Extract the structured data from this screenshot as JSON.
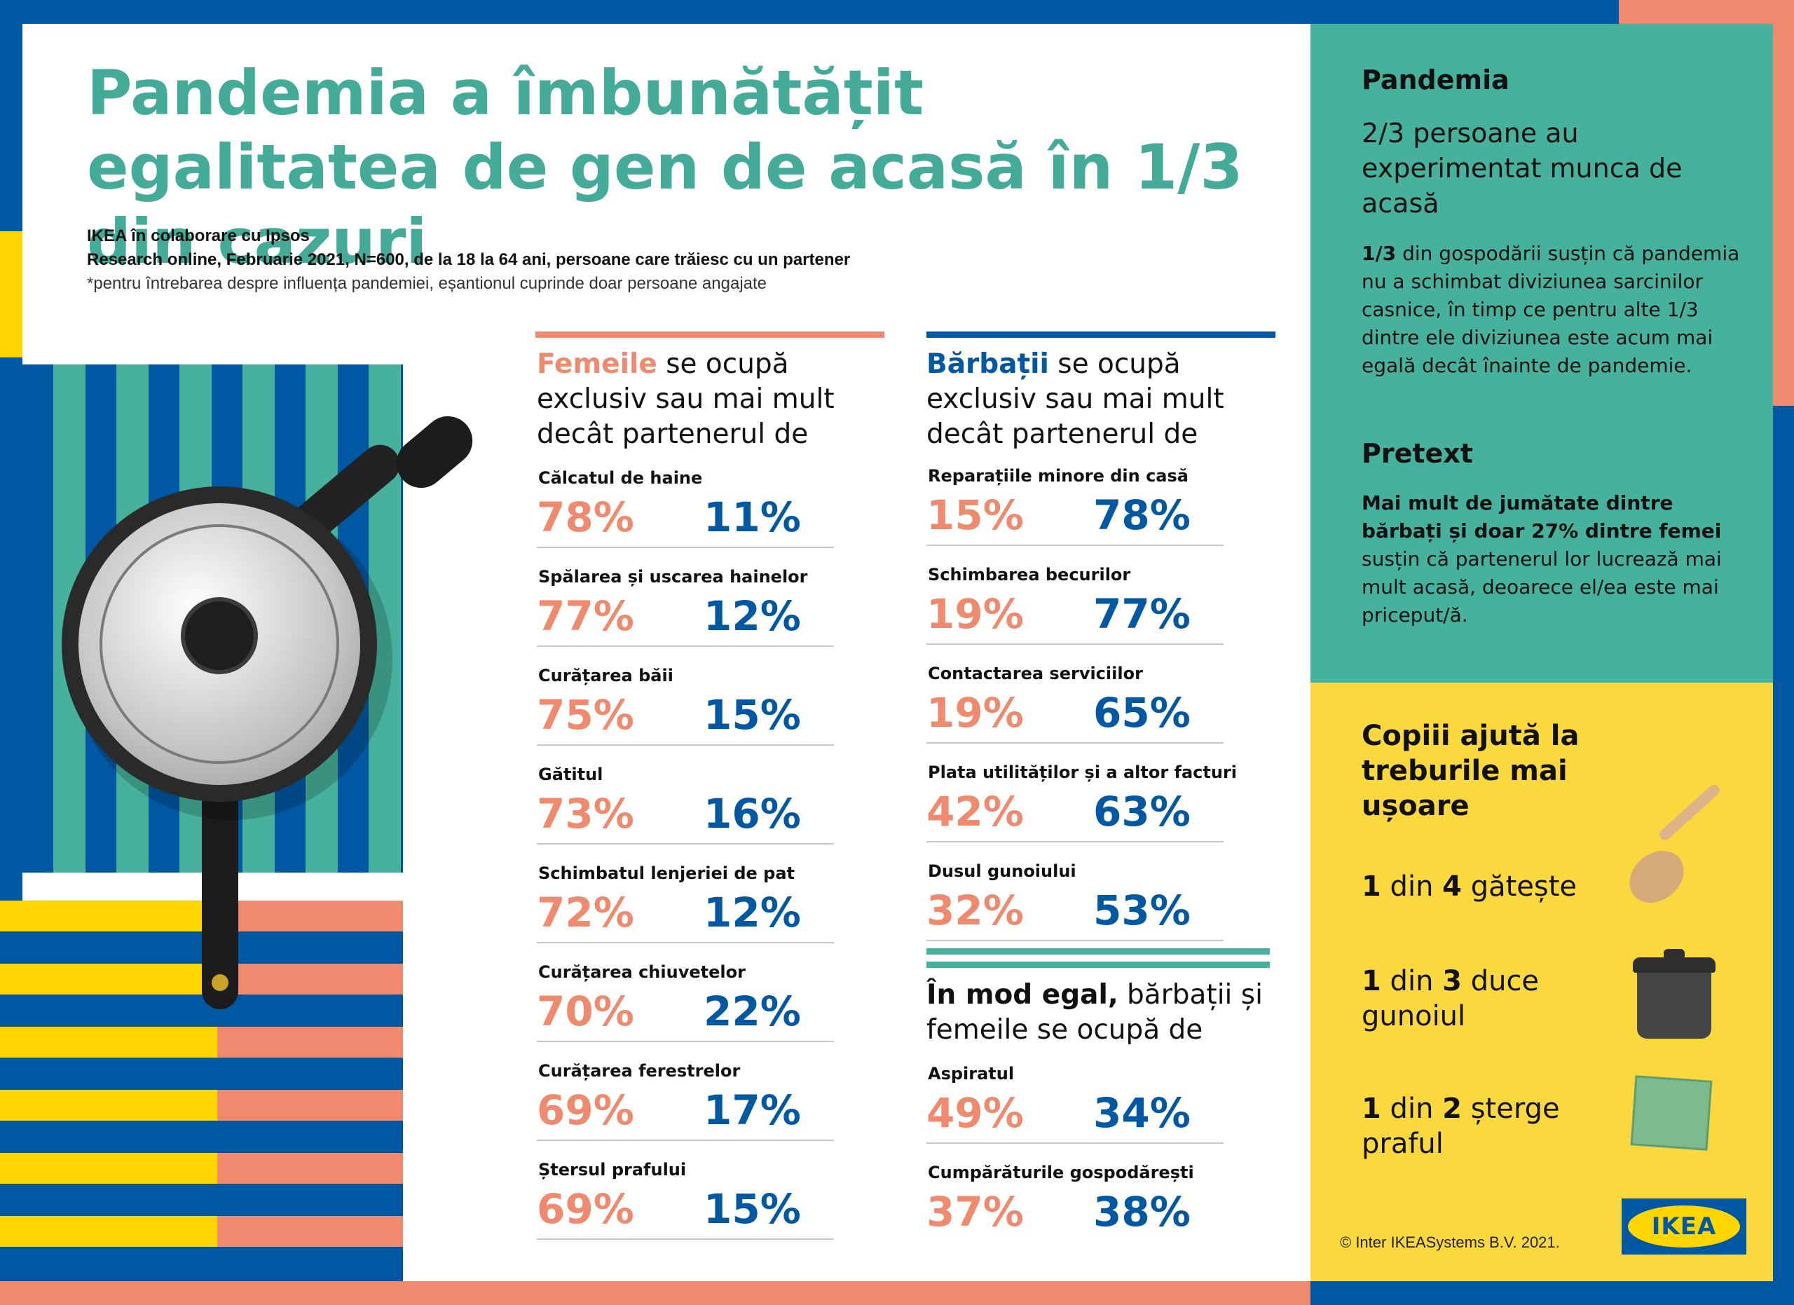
{
  "title": "Pandemia a îmbunătățit egalitatea de gen de acasă în 1/3 din cazuri",
  "subtitle": {
    "line1": "IKEA în colaborare cu Ipsos",
    "line2": "Research online, Februarie 2021, N=600, de la 18 la 64 ani, persoane care trăiesc cu un partener",
    "line3": "*pentru întrebarea despre influența pandemiei, eșantionul cuprinde doar persoane angajate"
  },
  "women_column": {
    "heading_strong": "Femeile",
    "heading_rest": " se ocupă exclusiv sau mai mult decât partenerul de",
    "rows": [
      {
        "label": "Călcatul de haine",
        "women": "78%",
        "men": "11%"
      },
      {
        "label": "Spălarea și uscarea hainelor",
        "women": "77%",
        "men": "12%"
      },
      {
        "label": "Curățarea băii",
        "women": "75%",
        "men": "15%"
      },
      {
        "label": "Gătitul",
        "women": "73%",
        "men": "16%"
      },
      {
        "label": "Schimbatul lenjeriei de pat",
        "women": "72%",
        "men": "12%"
      },
      {
        "label": "Curățarea chiuvetelor",
        "women": "70%",
        "men": "22%"
      },
      {
        "label": "Curățarea ferestrelor",
        "women": "69%",
        "men": "17%"
      },
      {
        "label": "Ștersul prafului",
        "women": "69%",
        "men": "15%"
      }
    ]
  },
  "men_column": {
    "heading_strong": "Bărbații",
    "heading_rest": " se ocupă exclusiv sau mai mult decât partenerul de",
    "rows": [
      {
        "label": "Reparațiile minore din casă",
        "women": "15%",
        "men": "78%"
      },
      {
        "label": "Schimbarea becurilor",
        "women": "19%",
        "men": "77%"
      },
      {
        "label": "Contactarea serviciilor",
        "women": "19%",
        "men": "65%"
      },
      {
        "label": "Plata utilităților și a altor facturi",
        "women": "42%",
        "men": "63%"
      },
      {
        "label": "Dusul gunoiului",
        "women": "32%",
        "men": "53%"
      }
    ]
  },
  "equal_column": {
    "heading_strong": "În mod egal,",
    "heading_rest": " bărbații și femeile se ocupă de",
    "rows": [
      {
        "label": "Aspiratul",
        "women": "49%",
        "men": "34%"
      },
      {
        "label": "Cumpărăturile gospodărești",
        "women": "37%",
        "men": "38%"
      }
    ]
  },
  "right_panel": {
    "pandemic_heading": "Pandemia",
    "pandemic_big": "2/3 persoane au experimentat munca de acasă",
    "pandemic_text_strong": "1/3",
    "pandemic_text_rest": " din gospodării susțin că pandemia nu a schimbat diviziunea sarcinilor casnice, în timp ce pentru alte 1/3 dintre ele diviziunea este acum mai egală decât înainte de pandemie.",
    "pretext_heading": "Pretext",
    "pretext_text_strong": "Mai mult de jumătate dintre bărbați și doar 27% dintre femei",
    "pretext_text_rest": " susțin că partenerul lor lucrează mai mult acasă, deoarece el/ea este mai priceput/ă.",
    "kids_heading": "Copiii ajută la treburile mai ușoare",
    "kids": [
      {
        "n1": "1",
        "mid": " din ",
        "n2": "4",
        "rest": " gătește",
        "icon": "wooden-spoon-icon"
      },
      {
        "n1": "1",
        "mid": " din ",
        "n2": "3",
        "rest": " duce gunoiul",
        "icon": "trash-bin-icon"
      },
      {
        "n1": "1",
        "mid": " din ",
        "n2": "2",
        "rest": " șterge praful",
        "icon": "cleaning-cloth-icon"
      }
    ]
  },
  "footer": {
    "copyright": "© Inter IKEASystems B.V. 2021.",
    "logo_text": "IKEA"
  },
  "colors": {
    "teal": "#46b29d",
    "title_teal": "#44ab98",
    "salmon": "#f08a6e",
    "blue": "#0058a3",
    "yellow": "#fbd93e",
    "ikea_yellow": "#ffd500"
  }
}
